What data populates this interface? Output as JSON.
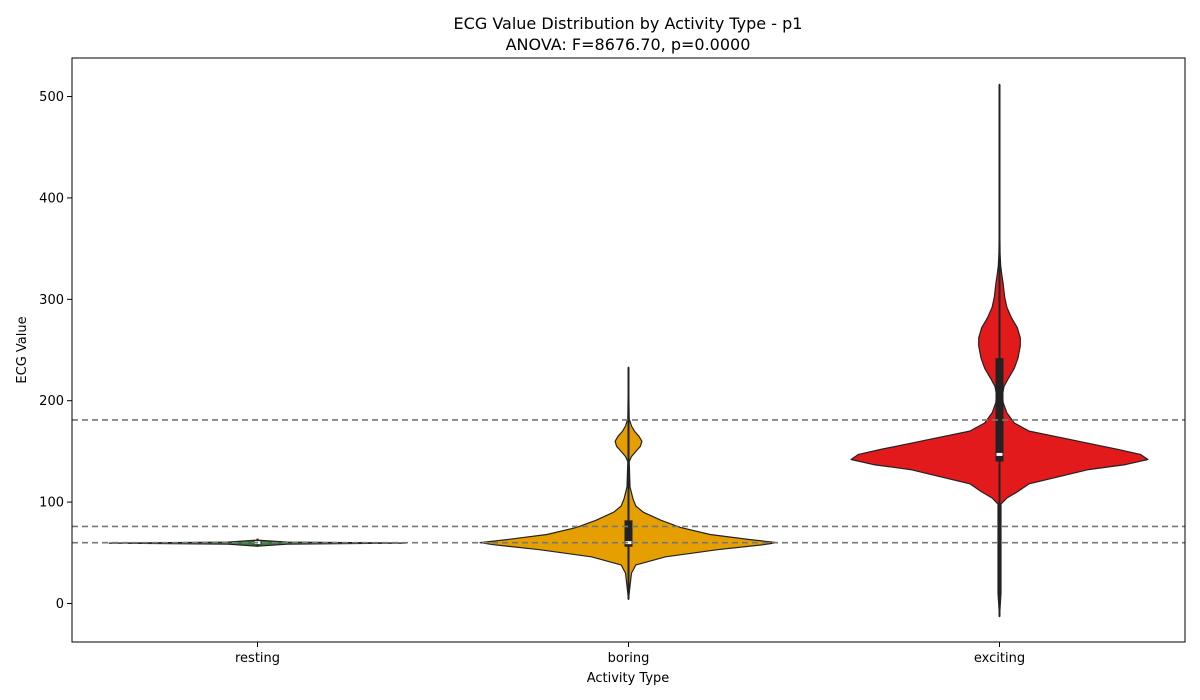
{
  "chart_data": {
    "type": "violin",
    "title": "ECG Value Distribution by Activity Type - p1",
    "subtitle": "ANOVA: F=8676.70, p=0.0000",
    "xlabel": "Activity Type",
    "ylabel": "ECG Value",
    "ylim": [
      -38,
      538
    ],
    "yticks": [
      0,
      100,
      200,
      300,
      400,
      500
    ],
    "categories": [
      "resting",
      "boring",
      "exciting"
    ],
    "colors": [
      "#2e7d32",
      "#e69f00",
      "#e31a1c"
    ],
    "reference_lines": [
      60,
      76,
      181
    ],
    "grid": false,
    "violins": [
      {
        "category": "resting",
        "color": "#2e7d32",
        "profile": [
          [
            56.5,
            0.0
          ],
          [
            58.5,
            0.2
          ],
          [
            59.5,
            1.0
          ],
          [
            60.5,
            0.2
          ],
          [
            62.5,
            0.0
          ]
        ],
        "whisker": [
          56,
          64
        ],
        "box": [
          58,
          62
        ],
        "median": 60
      },
      {
        "category": "boring",
        "color": "#e69f00",
        "profile": [
          [
            4,
            0.0
          ],
          [
            30,
            0.02
          ],
          [
            38,
            0.05
          ],
          [
            46,
            0.25
          ],
          [
            53,
            0.6
          ],
          [
            58,
            0.91
          ],
          [
            60,
            1.0
          ],
          [
            63,
            0.82
          ],
          [
            68,
            0.55
          ],
          [
            75,
            0.35
          ],
          [
            82,
            0.22
          ],
          [
            90,
            0.1
          ],
          [
            96,
            0.05
          ],
          [
            103,
            0.03
          ],
          [
            115,
            0.01
          ],
          [
            140,
            0.005
          ],
          [
            145,
            0.02
          ],
          [
            150,
            0.05
          ],
          [
            155,
            0.08
          ],
          [
            160,
            0.09
          ],
          [
            165,
            0.07
          ],
          [
            170,
            0.04
          ],
          [
            175,
            0.02
          ],
          [
            182,
            0.005
          ],
          [
            233,
            0.0
          ]
        ],
        "whisker": [
          4,
          233
        ],
        "box": [
          56,
          82
        ],
        "median": 60
      },
      {
        "category": "exciting",
        "color": "#e31a1c",
        "profile": [
          [
            -13,
            0.0
          ],
          [
            10,
            0.01
          ],
          [
            98,
            0.01
          ],
          [
            104,
            0.05
          ],
          [
            110,
            0.12
          ],
          [
            118,
            0.2
          ],
          [
            125,
            0.4
          ],
          [
            132,
            0.6
          ],
          [
            137,
            0.85
          ],
          [
            142,
            1.0
          ],
          [
            147,
            0.95
          ],
          [
            152,
            0.8
          ],
          [
            158,
            0.6
          ],
          [
            164,
            0.4
          ],
          [
            170,
            0.2
          ],
          [
            178,
            0.1
          ],
          [
            188,
            0.05
          ],
          [
            198,
            0.025
          ],
          [
            206,
            0.02
          ],
          [
            214,
            0.03
          ],
          [
            222,
            0.06
          ],
          [
            232,
            0.1
          ],
          [
            242,
            0.125
          ],
          [
            254,
            0.14
          ],
          [
            262,
            0.14
          ],
          [
            272,
            0.12
          ],
          [
            282,
            0.08
          ],
          [
            292,
            0.05
          ],
          [
            302,
            0.035
          ],
          [
            315,
            0.025
          ],
          [
            325,
            0.015
          ],
          [
            333,
            0.008
          ],
          [
            345,
            0.004
          ],
          [
            360,
            0.003
          ],
          [
            512,
            0.0
          ]
        ],
        "whisker": [
          -13,
          512
        ],
        "box": [
          140,
          242
        ],
        "median": 147
      }
    ]
  }
}
